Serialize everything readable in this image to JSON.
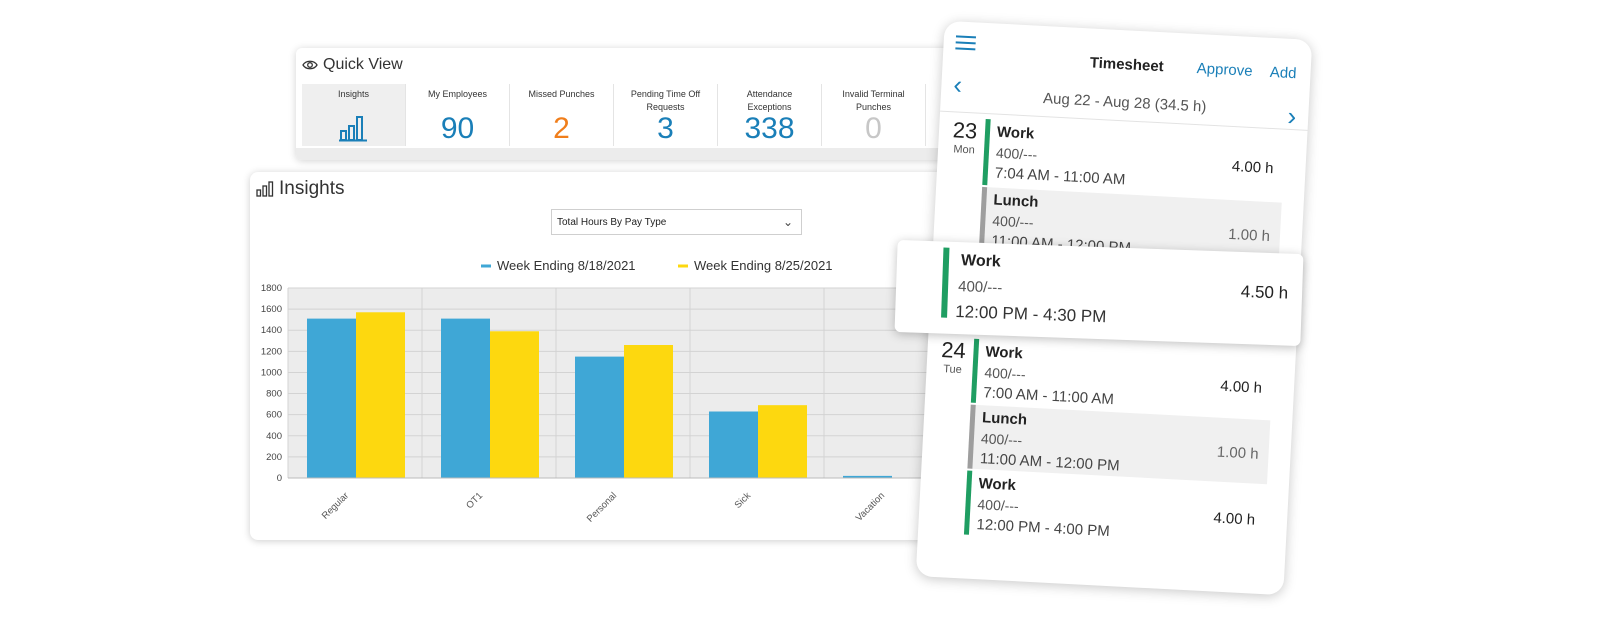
{
  "quick_view": {
    "title": "Quick View",
    "tiles": [
      {
        "label": "Insights",
        "value": "",
        "icon": "bar-chart-icon"
      },
      {
        "label": "My Employees",
        "value": "90"
      },
      {
        "label": "Missed Punches",
        "value": "2"
      },
      {
        "label": "Pending Time Off Requests",
        "value": "3"
      },
      {
        "label": "Attendance Exceptions",
        "value": "338"
      },
      {
        "label": "Invalid Terminal Punches",
        "value": "0"
      }
    ]
  },
  "insights": {
    "title": "Insights",
    "select_value": "Total Hours By Pay Type"
  },
  "chart_data": {
    "type": "bar",
    "title": "",
    "xlabel": "",
    "ylabel": "",
    "categories": [
      "Regular",
      "OT1",
      "Personal",
      "Sick",
      "Vacation"
    ],
    "series": [
      {
        "name": "Week Ending 8/18/2021",
        "values": [
          1510,
          1510,
          1150,
          630,
          20
        ]
      },
      {
        "name": "Week Ending 8/25/2021",
        "values": [
          1570,
          1390,
          1260,
          690,
          0
        ]
      }
    ],
    "ylim": [
      0,
      1800
    ],
    "yticks": [
      "0",
      "200",
      "400",
      "600",
      "800",
      "1000",
      "1200",
      "1400",
      "1600",
      "1800"
    ],
    "grid": true,
    "legend": "top-center",
    "colors": [
      "#3fa7d6",
      "#fdd80f"
    ]
  },
  "timesheet": {
    "title": "Timesheet",
    "approve": "Approve",
    "add": "Add",
    "range": "Aug 22 - Aug 28 (34.5 h)",
    "days": [
      {
        "num": "23",
        "dow": "Mon",
        "entries": [
          {
            "type": "Work",
            "code": "400/---",
            "time": "7:04 AM  - 11:00 AM",
            "hours": "4.00 h"
          },
          {
            "type": "Lunch",
            "code": "400/---",
            "time": "11:00 AM  - 12:00 PM",
            "hours": "1.00 h"
          }
        ]
      },
      {
        "num": "24",
        "dow": "Tue",
        "entries": [
          {
            "type": "Work",
            "code": "400/---",
            "time": "7:00 AM  - 11:00 AM",
            "hours": "4.00 h"
          },
          {
            "type": "Lunch",
            "code": "400/---",
            "time": "11:00 AM  - 12:00 PM",
            "hours": "1.00 h"
          },
          {
            "type": "Work",
            "code": "400/---",
            "time": "12:00 PM  - 4:00 PM",
            "hours": "4.00 h"
          }
        ]
      }
    ],
    "floating_entry": {
      "type": "Work",
      "code": "400/---",
      "time": "12:00 PM  - 4:30 PM",
      "hours": "4.50 h"
    }
  }
}
